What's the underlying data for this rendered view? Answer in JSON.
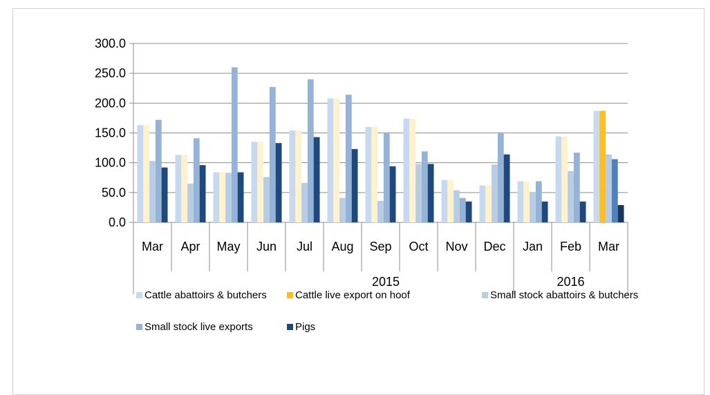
{
  "chart_data": {
    "type": "bar",
    "title": "",
    "xlabel": "",
    "ylabel": "",
    "ylim": [
      0,
      300
    ],
    "yticks": [
      "0.0",
      "50.0",
      "100.0",
      "150.0",
      "200.0",
      "250.0",
      "300.0"
    ],
    "grid": true,
    "legend_position": "bottom",
    "categories": [
      "Mar",
      "Apr",
      "May",
      "Jun",
      "Jul",
      "Aug",
      "Sep",
      "Oct",
      "Nov",
      "Dec",
      "Jan",
      "Feb",
      "Mar"
    ],
    "year_groups": [
      {
        "label": "2015",
        "start": 0,
        "end": 9
      },
      {
        "label": "2016",
        "start": 10,
        "end": 12
      }
    ],
    "series": [
      {
        "name": "Cattle abattoirs & butchers",
        "color": "#c6d9f0",
        "values": [
          163,
          113,
          84,
          135,
          154,
          208,
          160,
          174,
          71,
          62,
          69,
          144,
          187
        ]
      },
      {
        "name": "Cattle live export on hoof",
        "color": "#fbbf24",
        "values": [
          163,
          113,
          84,
          135,
          154,
          208,
          160,
          174,
          71,
          62,
          69,
          144,
          187
        ]
      },
      {
        "name": "Small stock  abattoirs & butchers",
        "color": "#b8cce4",
        "values": [
          103,
          65,
          83,
          76,
          66,
          41,
          36,
          98,
          54,
          97,
          51,
          86,
          114
        ]
      },
      {
        "name": "Small stock live exports",
        "color": "#95b3d7",
        "values": [
          172,
          141,
          260,
          227,
          240,
          214,
          151,
          119,
          41,
          151,
          69,
          117,
          106
        ]
      },
      {
        "name": "Pigs",
        "color": "#1f497d",
        "values": [
          92,
          96,
          84,
          133,
          143,
          123,
          94,
          98,
          35,
          114,
          35,
          35,
          29
        ]
      }
    ]
  }
}
